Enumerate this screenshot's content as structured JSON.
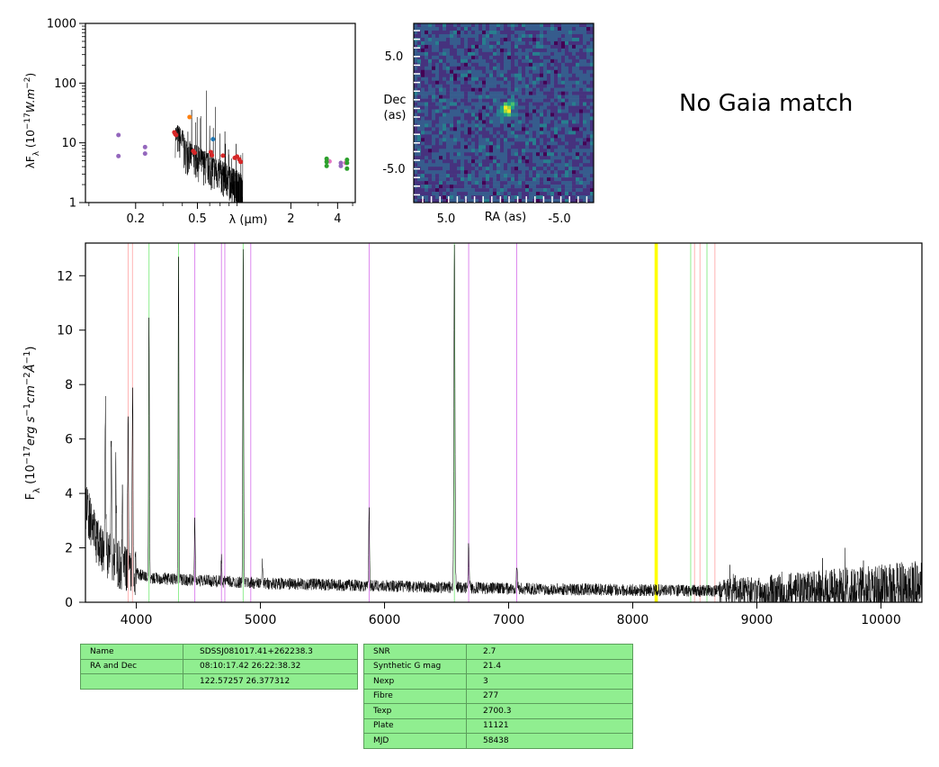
{
  "chart_data": [
    {
      "id": "sed",
      "type": "scatter",
      "ylabel": "λF_λ (10^-17 W.m^-2)",
      "xlabel": "λ (μm)",
      "xscale": "log",
      "yscale": "log",
      "xlim": [
        0.095,
        5.2
      ],
      "ylim": [
        1,
        1000
      ],
      "x_ticks": [
        "0.2",
        "0.5",
        "2",
        "4"
      ],
      "x_tick_values": [
        0.2,
        0.5,
        2,
        4
      ],
      "y_ticks": [
        "1",
        "10",
        "100",
        "1000"
      ],
      "y_tick_values": [
        1,
        10,
        100,
        1000
      ],
      "series": [
        {
          "color": "#9467bd",
          "x": [
            0.155,
            0.155,
            0.23,
            0.23,
            4.2,
            4.2
          ],
          "y": [
            13.5,
            6,
            8.5,
            6.6,
            4.6,
            4.1
          ]
        },
        {
          "color": "#e377c2",
          "x": [
            3.55,
            4.5
          ],
          "y": [
            4.9,
            4.6
          ]
        },
        {
          "color": "#ff7f0e",
          "x": [
            0.445
          ],
          "y": [
            27
          ]
        },
        {
          "color": "#1f77b4",
          "x": [
            0.63
          ],
          "y": [
            11.5
          ]
        },
        {
          "color": "#2ca02c",
          "x": [
            3.4,
            3.4,
            3.4,
            4.6,
            4.6,
            4.6
          ],
          "y": [
            5.4,
            4.8,
            4.1,
            5.2,
            4.6,
            3.7
          ]
        },
        {
          "color": "#d62728",
          "x": [
            0.355,
            0.36,
            0.365,
            0.47,
            0.48,
            0.61,
            0.62,
            0.73,
            0.87,
            0.9,
            0.93,
            0.95
          ],
          "y": [
            15,
            14,
            13.5,
            7.3,
            6.8,
            7,
            6.2,
            6.1,
            5.6,
            5.9,
            5.3,
            4.8
          ]
        }
      ]
    },
    {
      "id": "cutout",
      "type": "heatmap",
      "xlabel": "RA (as)",
      "ylabel": "Dec\n(as)",
      "x_ticks": [
        "5.0",
        "-5.0"
      ],
      "y_ticks": [
        "5.0",
        "-5.0"
      ],
      "colormap": "viridis"
    },
    {
      "id": "spectrum",
      "type": "line",
      "xlabel": "",
      "ylabel": "F_λ (10^-17 erg s^-1 cm^-2 Å^-1)",
      "xlim": [
        3590,
        10330
      ],
      "ylim": [
        0,
        13.2
      ],
      "x_ticks": [
        4000,
        5000,
        6000,
        7000,
        8000,
        9000,
        10000
      ],
      "y_ticks": [
        0,
        2,
        4,
        6,
        8,
        10,
        12
      ],
      "line_color": "#000000",
      "continuum": {
        "x": [
          3590,
          3700,
          3900,
          4100,
          4500,
          5000,
          6000,
          7000,
          8000,
          9000,
          10330
        ],
        "y": [
          3.6,
          2.0,
          1.2,
          0.9,
          0.8,
          0.7,
          0.6,
          0.5,
          0.45,
          0.4,
          0.45
        ]
      },
      "emission_lines": [
        {
          "x": 3750,
          "peak": 7.5
        },
        {
          "x": 3798,
          "peak": 5.5
        },
        {
          "x": 3835,
          "peak": 5.0
        },
        {
          "x": 3889,
          "peak": 4.2
        },
        {
          "x": 3970,
          "peak": 8.2
        },
        {
          "x": 3934,
          "peak": 7.2
        },
        {
          "x": 4102,
          "peak": 10.4
        },
        {
          "x": 4340,
          "peak": 12.6
        },
        {
          "x": 4471,
          "peak": 3.1
        },
        {
          "x": 4686,
          "peak": 1.7
        },
        {
          "x": 4861,
          "peak": 13.2
        },
        {
          "x": 5016,
          "peak": 1.4
        },
        {
          "x": 5876,
          "peak": 3.6
        },
        {
          "x": 6563,
          "peak": 13.0
        },
        {
          "x": 6678,
          "peak": 2.1
        },
        {
          "x": 7065,
          "peak": 1.4
        }
      ],
      "noise_regions": [
        {
          "x_from": 8700,
          "x_to": 10330,
          "amplitude": 1.1
        }
      ],
      "vertical_lines": [
        {
          "x": 3934,
          "color": "#ffb3b3"
        },
        {
          "x": 3969,
          "color": "#ffb3b3"
        },
        {
          "x": 4102,
          "color": "#90ee90"
        },
        {
          "x": 4340,
          "color": "#90ee90"
        },
        {
          "x": 4861,
          "color": "#90ee90"
        },
        {
          "x": 4471,
          "color": "#dd88ee"
        },
        {
          "x": 4686,
          "color": "#dd88ee"
        },
        {
          "x": 4713,
          "color": "#dd88ee"
        },
        {
          "x": 4922,
          "color": "#dd88ee"
        },
        {
          "x": 5876,
          "color": "#dd88ee"
        },
        {
          "x": 6678,
          "color": "#dd88ee"
        },
        {
          "x": 7065,
          "color": "#dd88ee"
        },
        {
          "x": 6563,
          "color": "#90ee90"
        },
        {
          "x": 8183,
          "color": "#ffff00"
        },
        {
          "x": 8195,
          "color": "#ffff00"
        },
        {
          "x": 8467,
          "color": "#90ee90"
        },
        {
          "x": 8598,
          "color": "#90ee90"
        },
        {
          "x": 8498,
          "color": "#ffb3b3"
        },
        {
          "x": 8542,
          "color": "#ffb3b3"
        },
        {
          "x": 8662,
          "color": "#ffb3b3"
        }
      ]
    }
  ],
  "gaia_note": "No Gaia match",
  "table_left": [
    [
      "Name",
      "SDSSJ081017.41+262238.3"
    ],
    [
      "RA and Dec",
      "08:10:17.42    26:22:38.32"
    ],
    [
      "",
      "122.57257    26.377312"
    ]
  ],
  "table_right": [
    [
      "SNR",
      "2.7"
    ],
    [
      "Synthetic G mag",
      "21.4"
    ],
    [
      "Nexp",
      "3"
    ],
    [
      "Fibre",
      "277"
    ],
    [
      "Texp",
      "2700.3"
    ],
    [
      "Plate",
      "11121"
    ],
    [
      "MJD",
      "58438"
    ]
  ]
}
